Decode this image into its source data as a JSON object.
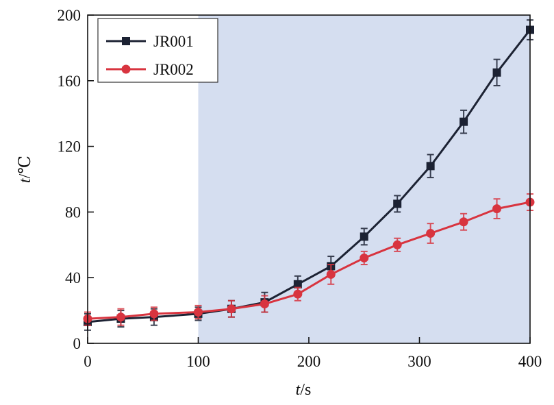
{
  "chart_data": {
    "type": "line",
    "xlabel_var": "t",
    "xlabel_unit": "/s",
    "ylabel_var": "t",
    "ylabel_unit": "/℃",
    "xlim": [
      0,
      400
    ],
    "ylim": [
      0,
      200
    ],
    "xticks": [
      0,
      100,
      200,
      300,
      400
    ],
    "yticks": [
      0,
      40,
      80,
      120,
      160,
      200
    ],
    "xtick_labels": [
      "0",
      "100",
      "200",
      "300",
      "400"
    ],
    "ytick_labels": [
      "0",
      "40",
      "80",
      "120",
      "160",
      "200"
    ],
    "shaded_region": {
      "x_from": 100,
      "x_to": 400,
      "color": "#d5def0"
    },
    "legend_position": "top-left",
    "grid": false,
    "series": [
      {
        "name": "JR001",
        "color": "#1c2233",
        "marker": "square",
        "x": [
          0,
          30,
          60,
          100,
          130,
          160,
          190,
          220,
          250,
          280,
          310,
          340,
          370,
          400
        ],
        "y": [
          13,
          15,
          16,
          18,
          21,
          25,
          36,
          47,
          65,
          85,
          108,
          135,
          165,
          191
        ],
        "err": [
          5,
          5,
          5,
          4,
          5,
          6,
          5,
          6,
          5,
          5,
          7,
          7,
          8,
          6
        ]
      },
      {
        "name": "JR002",
        "color": "#d8343f",
        "marker": "circle",
        "x": [
          0,
          30,
          60,
          100,
          130,
          160,
          190,
          220,
          250,
          280,
          310,
          340,
          370,
          400
        ],
        "y": [
          15,
          16,
          18,
          19,
          21,
          24,
          30,
          42,
          52,
          60,
          67,
          74,
          82,
          86
        ],
        "err": [
          4,
          5,
          4,
          4,
          5,
          5,
          4,
          6,
          4,
          4,
          6,
          5,
          6,
          5
        ]
      }
    ]
  }
}
